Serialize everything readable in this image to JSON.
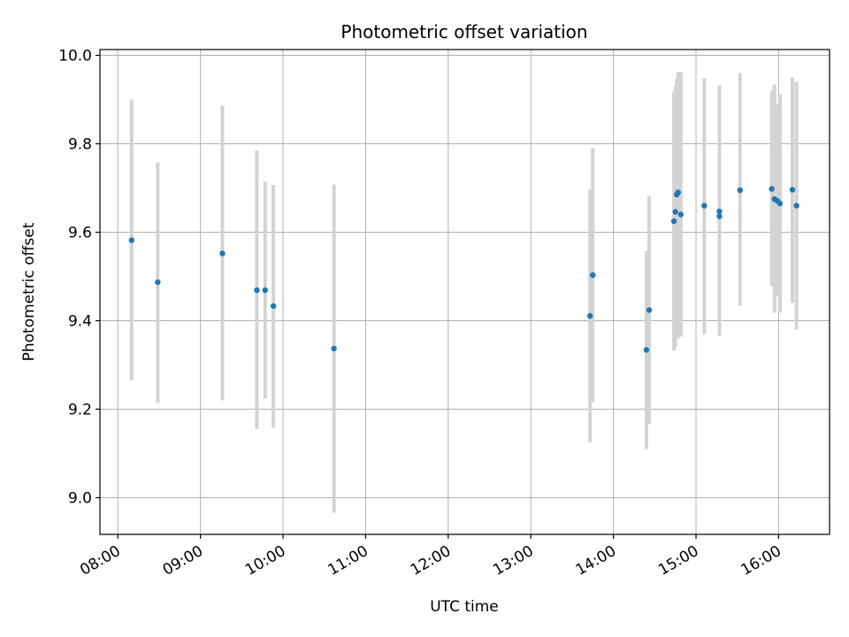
{
  "chart_data": {
    "type": "scatter",
    "title": "Photometric offset variation",
    "xlabel": "UTC time",
    "ylabel": "Photometric offset",
    "x_tick_labels": [
      "08:00",
      "09:00",
      "10:00",
      "11:00",
      "12:00",
      "13:00",
      "14:00",
      "15:00",
      "16:00"
    ],
    "y_tick_labels": [
      "9.0",
      "9.2",
      "9.4",
      "9.6",
      "9.8",
      "10.0"
    ],
    "xlim": [
      "07:47",
      "16:37"
    ],
    "ylim": [
      8.917,
      10.013
    ],
    "grid": true,
    "colors": {
      "point": "#1f77b4",
      "errorbar": "#d3d3d3"
    },
    "points": [
      {
        "x": "08:10",
        "y": 9.582,
        "low": 9.265,
        "high": 9.9
      },
      {
        "x": "08:29",
        "y": 9.487,
        "low": 9.214,
        "high": 9.758
      },
      {
        "x": "09:16",
        "y": 9.552,
        "low": 9.22,
        "high": 9.886
      },
      {
        "x": "09:41",
        "y": 9.469,
        "low": 9.155,
        "high": 9.785
      },
      {
        "x": "09:47",
        "y": 9.469,
        "low": 9.224,
        "high": 9.714
      },
      {
        "x": "09:53",
        "y": 9.433,
        "low": 9.158,
        "high": 9.707
      },
      {
        "x": "10:37",
        "y": 9.337,
        "low": 8.966,
        "high": 9.708
      },
      {
        "x": "13:43",
        "y": 9.411,
        "low": 9.125,
        "high": 9.697
      },
      {
        "x": "13:45",
        "y": 9.503,
        "low": 9.216,
        "high": 9.79
      },
      {
        "x": "14:24",
        "y": 9.334,
        "low": 9.11,
        "high": 9.558
      },
      {
        "x": "14:26",
        "y": 9.424,
        "low": 9.166,
        "high": 9.682
      },
      {
        "x": "14:44",
        "y": 9.625,
        "low": 9.332,
        "high": 9.918
      },
      {
        "x": "14:45",
        "y": 9.646,
        "low": 9.342,
        "high": 9.93
      },
      {
        "x": "14:46",
        "y": 9.685,
        "low": 9.404,
        "high": 9.948
      },
      {
        "x": "14:47",
        "y": 9.69,
        "low": 9.36,
        "high": 9.962
      },
      {
        "x": "14:49",
        "y": 9.64,
        "low": 9.364,
        "high": 9.962
      },
      {
        "x": "15:06",
        "y": 9.66,
        "low": 9.37,
        "high": 9.948
      },
      {
        "x": "15:17",
        "y": 9.636,
        "low": 9.366,
        "high": 9.932
      },
      {
        "x": "15:17",
        "y": 9.647,
        "low": 9.38,
        "high": 9.905
      },
      {
        "x": "15:32",
        "y": 9.695,
        "low": 9.434,
        "high": 9.96
      },
      {
        "x": "15:55",
        "y": 9.698,
        "low": 9.478,
        "high": 9.92
      },
      {
        "x": "15:57",
        "y": 9.675,
        "low": 9.418,
        "high": 9.934
      },
      {
        "x": "15:59",
        "y": 9.671,
        "low": 9.455,
        "high": 9.89
      },
      {
        "x": "16:01",
        "y": 9.665,
        "low": 9.418,
        "high": 9.912
      },
      {
        "x": "16:10",
        "y": 9.696,
        "low": 9.44,
        "high": 9.95
      },
      {
        "x": "16:13",
        "y": 9.66,
        "low": 9.38,
        "high": 9.94
      }
    ]
  }
}
